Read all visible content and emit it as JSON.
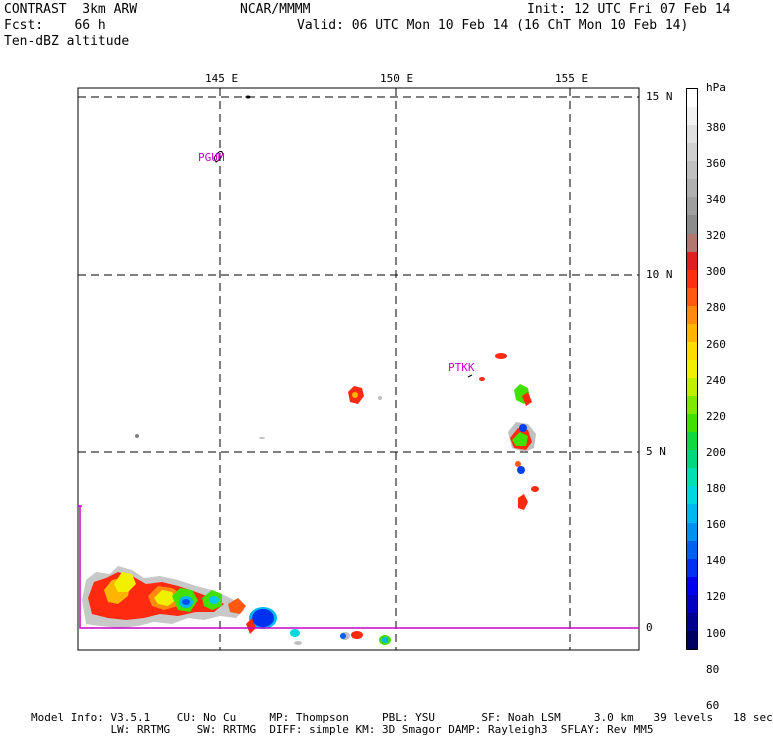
{
  "header": {
    "left_line1": "CONTRAST  3km ARW",
    "left_line2": "Fcst:    66 h",
    "left_line3": "Ten-dBZ altitude",
    "center_line1": "NCAR/MMMM",
    "right_line1": "Init: 12 UTC Fri 07 Feb 14",
    "right_line2": "Valid: 06 UTC Mon 10 Feb 14 (16 ChT Mon 10 Feb 14)"
  },
  "map": {
    "lon_labels": [
      "145 E",
      "150 E",
      "155 E"
    ],
    "lat_labels": [
      "15 N",
      "10 N",
      "5 N",
      "0"
    ],
    "stations": [
      {
        "name": "PGUM",
        "color": "#cc00cc"
      },
      {
        "name": "PTKK",
        "color": "#cc00cc"
      }
    ],
    "domain_line_color": "#cc00cc"
  },
  "colorbar": {
    "unit": "hPa",
    "labels": [
      "380",
      "360",
      "340",
      "320",
      "300",
      "280",
      "260",
      "240",
      "220",
      "200",
      "180",
      "160",
      "140",
      "120",
      "100",
      "80",
      "60"
    ],
    "colors": [
      "#ffffff",
      "#f2f2f2",
      "#e0e0e0",
      "#d0d0d0",
      "#c0c0c0",
      "#b0b0b0",
      "#9f9f9f",
      "#8c8c8c",
      "#b07870",
      "#e02020",
      "#ff3010",
      "#ff5a10",
      "#ff8a10",
      "#ffb400",
      "#ffdc00",
      "#f0f000",
      "#c0f000",
      "#80e800",
      "#40e000",
      "#10d840",
      "#00d880",
      "#00e0b0",
      "#00d8e0",
      "#00b8f0",
      "#0090f0",
      "#0060f0",
      "#0030f0",
      "#0000f0",
      "#0000c0",
      "#000090",
      "#000060"
    ]
  },
  "footer": {
    "line1": "Model Info: V3.5.1    CU: No Cu     MP: Thompson     PBL: YSU       SF: Noah LSM     3.0 km   39 levels   18 sec",
    "line2": "            LW: RRTMG    SW: RRTMG  DIFF: simple KM: 3D Smagor DAMP: Rayleigh3  SFLAY: Rev MM5"
  }
}
